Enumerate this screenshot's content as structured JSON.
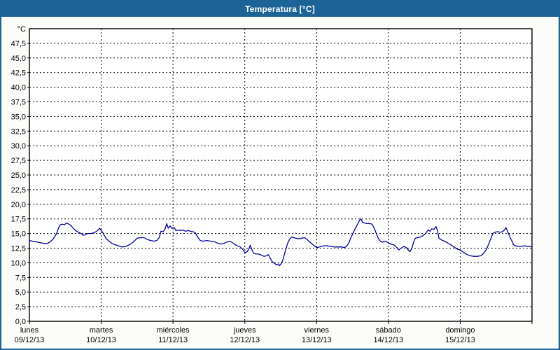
{
  "window": {
    "title": "Temperatura [°C]",
    "colors": {
      "title_bar": "#1c6396",
      "window_border": "#1c6396",
      "content_background": "#fcfdfa",
      "plot_background": "#ffffff",
      "grid": "#000000",
      "axis": "#000000",
      "line": "#0000a0",
      "title_text": "#ffffff"
    }
  },
  "chart_data": {
    "type": "line",
    "title": "Temperatura [°C]",
    "grid": "dashed",
    "legend": "none",
    "y_axis": {
      "unit_label": "°C",
      "min": 0,
      "max": 50,
      "tick_step": 2.5,
      "tick_labels": [
        "47,5",
        "45,0",
        "42,5",
        "40,0",
        "37,5",
        "35,0",
        "32,5",
        "30,0",
        "27,5",
        "25,0",
        "22,5",
        "20,0",
        "17,5",
        "15,0",
        "12,5",
        "10,0",
        "7,5",
        "5,0",
        "2,5",
        "0,0"
      ]
    },
    "x_axis": {
      "total_hours": 168,
      "days": [
        {
          "name": "lunes",
          "date": "09/12/13"
        },
        {
          "name": "martes",
          "date": "10/12/13"
        },
        {
          "name": "miércoles",
          "date": "11/12/13"
        },
        {
          "name": "jueves",
          "date": "12/12/13"
        },
        {
          "name": "viernes",
          "date": "13/12/13"
        },
        {
          "name": "sábado",
          "date": "14/12/13"
        },
        {
          "name": "domingo",
          "date": "15/12/13"
        }
      ]
    },
    "series": [
      {
        "name": "Temperatura",
        "color": "#0000a0",
        "points": [
          [
            0,
            13.8
          ],
          [
            1,
            13.7
          ],
          [
            2,
            13.6
          ],
          [
            3,
            13.5
          ],
          [
            4,
            13.4
          ],
          [
            5,
            13.3
          ],
          [
            6,
            13.3
          ],
          [
            7,
            13.6
          ],
          [
            8,
            14.1
          ],
          [
            9,
            14.9
          ],
          [
            9.7,
            15.9
          ],
          [
            10.3,
            16.5
          ],
          [
            11,
            16.6
          ],
          [
            11.7,
            16.5
          ],
          [
            12.4,
            16.8
          ],
          [
            13.2,
            16.6
          ],
          [
            14,
            16.3
          ],
          [
            15,
            15.7
          ],
          [
            15.7,
            15.4
          ],
          [
            16.5,
            15.2
          ],
          [
            17.3,
            15.0
          ],
          [
            18,
            14.7
          ],
          [
            18.7,
            14.8
          ],
          [
            19.5,
            15.0
          ],
          [
            20.6,
            15.0
          ],
          [
            21.4,
            15.1
          ],
          [
            22.2,
            15.3
          ],
          [
            23,
            15.6
          ],
          [
            23.5,
            15.9
          ],
          [
            24.6,
            15.1
          ],
          [
            25.7,
            14.1
          ],
          [
            26.6,
            13.7
          ],
          [
            27.6,
            13.3
          ],
          [
            28.6,
            13.1
          ],
          [
            29.8,
            12.9
          ],
          [
            31,
            12.7
          ],
          [
            32.3,
            12.8
          ],
          [
            33.5,
            13.1
          ],
          [
            34.6,
            13.5
          ],
          [
            36,
            14.2
          ],
          [
            37.2,
            14.3
          ],
          [
            38.4,
            14.3
          ],
          [
            39.4,
            14.0
          ],
          [
            40.5,
            13.8
          ],
          [
            41.7,
            13.7
          ],
          [
            42.6,
            13.8
          ],
          [
            43.4,
            14.3
          ],
          [
            44,
            15.4
          ],
          [
            44.7,
            15.3
          ],
          [
            45.3,
            15.7
          ],
          [
            45.9,
            16.7
          ],
          [
            46.4,
            15.9
          ],
          [
            47,
            16.3
          ],
          [
            47.6,
            15.9
          ],
          [
            48.4,
            16.0
          ],
          [
            49,
            15.5
          ],
          [
            49.8,
            15.6
          ],
          [
            50.5,
            15.5
          ],
          [
            51.3,
            15.6
          ],
          [
            52.2,
            15.4
          ],
          [
            53,
            15.5
          ],
          [
            53.8,
            15.4
          ],
          [
            54.7,
            15.3
          ],
          [
            55.5,
            15.1
          ],
          [
            56.4,
            14.3
          ],
          [
            57.1,
            13.8
          ],
          [
            58,
            13.7
          ],
          [
            59.4,
            13.8
          ],
          [
            60.6,
            13.7
          ],
          [
            61.8,
            13.6
          ],
          [
            63.2,
            13.3
          ],
          [
            64.1,
            13.2
          ],
          [
            65,
            13.3
          ],
          [
            65.8,
            13.5
          ],
          [
            67,
            13.7
          ],
          [
            68,
            13.4
          ],
          [
            68.8,
            13.1
          ],
          [
            69.5,
            12.9
          ],
          [
            70.5,
            12.7
          ],
          [
            71.3,
            12.3
          ],
          [
            72,
            11.7
          ],
          [
            72.8,
            11.9
          ],
          [
            73.4,
            12.4
          ],
          [
            73.8,
            13.0
          ],
          [
            74.4,
            12.2
          ],
          [
            75,
            11.6
          ],
          [
            75.8,
            11.5
          ],
          [
            76.6,
            11.5
          ],
          [
            77.5,
            11.3
          ],
          [
            78.4,
            11.1
          ],
          [
            79.3,
            11.2
          ],
          [
            79.8,
            11.4
          ],
          [
            80.3,
            11.0
          ],
          [
            80.9,
            10.4
          ],
          [
            81.5,
            10.0
          ],
          [
            82,
            9.9
          ],
          [
            82.6,
            9.6
          ],
          [
            83.2,
            9.8
          ],
          [
            83.6,
            9.5
          ],
          [
            84.2,
            9.9
          ],
          [
            84.8,
            10.6
          ],
          [
            85.5,
            11.9
          ],
          [
            86.3,
            13.3
          ],
          [
            87,
            14.0
          ],
          [
            87.6,
            14.4
          ],
          [
            88.3,
            14.3
          ],
          [
            89,
            14.2
          ],
          [
            90,
            14.1
          ],
          [
            91,
            14.2
          ],
          [
            92,
            14.3
          ],
          [
            92.8,
            14.0
          ],
          [
            93.6,
            13.6
          ],
          [
            94.5,
            13.2
          ],
          [
            95.3,
            12.9
          ],
          [
            96,
            12.6
          ],
          [
            97,
            12.7
          ],
          [
            98.3,
            12.9
          ],
          [
            99.5,
            12.9
          ],
          [
            100.7,
            12.8
          ],
          [
            102,
            12.7
          ],
          [
            103.3,
            12.7
          ],
          [
            104.4,
            12.7
          ],
          [
            105.3,
            12.6
          ],
          [
            106,
            12.8
          ],
          [
            106.8,
            13.4
          ],
          [
            107.4,
            14.2
          ],
          [
            108.2,
            15.1
          ],
          [
            109,
            15.9
          ],
          [
            109.8,
            16.7
          ],
          [
            110.4,
            17.3
          ],
          [
            110.8,
            17.5
          ],
          [
            111.4,
            16.9
          ],
          [
            112,
            16.8
          ],
          [
            112.8,
            16.7
          ],
          [
            113.7,
            16.7
          ],
          [
            114.5,
            16.6
          ],
          [
            115.3,
            15.9
          ],
          [
            116,
            14.9
          ],
          [
            116.7,
            14.1
          ],
          [
            117.3,
            13.7
          ],
          [
            118,
            13.5
          ],
          [
            118.7,
            13.7
          ],
          [
            119.4,
            13.6
          ],
          [
            120,
            13.4
          ],
          [
            120.8,
            13.2
          ],
          [
            122,
            13.0
          ],
          [
            122.8,
            12.6
          ],
          [
            123.5,
            12.2
          ],
          [
            124.3,
            12.5
          ],
          [
            125.2,
            12.8
          ],
          [
            126,
            12.6
          ],
          [
            126.6,
            12.2
          ],
          [
            127.2,
            11.9
          ],
          [
            127.8,
            12.4
          ],
          [
            128.4,
            13.5
          ],
          [
            129,
            14.2
          ],
          [
            129.8,
            14.3
          ],
          [
            130.6,
            14.4
          ],
          [
            131.5,
            14.6
          ],
          [
            132.4,
            15.0
          ],
          [
            133.3,
            15.6
          ],
          [
            133.9,
            15.4
          ],
          [
            134.5,
            15.8
          ],
          [
            135.2,
            15.7
          ],
          [
            135.9,
            16.2
          ],
          [
            136.4,
            15.5
          ],
          [
            136.9,
            14.2
          ],
          [
            137.8,
            13.9
          ],
          [
            138.7,
            13.7
          ],
          [
            139.8,
            13.4
          ],
          [
            141.1,
            13.0
          ],
          [
            142.2,
            12.6
          ],
          [
            143.2,
            12.3
          ],
          [
            144,
            12.2
          ],
          [
            145.1,
            11.8
          ],
          [
            146.3,
            11.4
          ],
          [
            147.4,
            11.2
          ],
          [
            148.5,
            11.1
          ],
          [
            149.7,
            11.1
          ],
          [
            150.9,
            11.2
          ],
          [
            151.6,
            11.5
          ],
          [
            152.8,
            12.3
          ],
          [
            153.9,
            13.7
          ],
          [
            154.9,
            15.0
          ],
          [
            155.6,
            15.2
          ],
          [
            156.2,
            15.3
          ],
          [
            156.8,
            15.3
          ],
          [
            157.4,
            15.2
          ],
          [
            158,
            15.3
          ],
          [
            158.6,
            15.5
          ],
          [
            159.3,
            16.0
          ],
          [
            159.9,
            15.3
          ],
          [
            160.7,
            14.3
          ],
          [
            161.4,
            13.6
          ],
          [
            161.8,
            13.1
          ],
          [
            162.5,
            12.9
          ],
          [
            163.5,
            12.8
          ],
          [
            164.5,
            12.8
          ],
          [
            165.5,
            12.9
          ],
          [
            166.5,
            12.8
          ],
          [
            167.5,
            12.8
          ],
          [
            168,
            12.8
          ]
        ]
      }
    ]
  }
}
